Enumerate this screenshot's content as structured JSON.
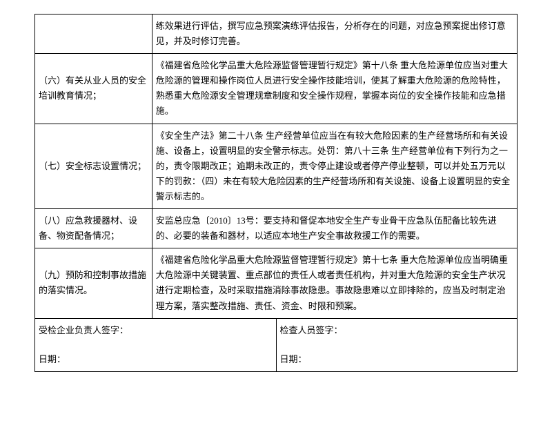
{
  "table": {
    "rows": [
      {
        "label": "",
        "content": "练效果进行评估，撰写应急预案演练评估报告，分析存在的问题，对应急预案提出修订意见，并及时修订完善。"
      },
      {
        "label": "（六）有关从业人员的安全培训教育情况；",
        "content": "《福建省危险化学品重大危险源监督管理暂行规定》第十八条 重大危险源单位应当对重大危险源的管理和操作岗位人员进行安全操作技能培训，使其了解重大危险源的危险特性，熟悉重大危险源安全管理规章制度和安全操作规程，掌握本岗位的安全操作技能和应急措施。"
      },
      {
        "label": "（七）安全标志设置情况；",
        "content": "《安全生产法》第二十八条 生产经营单位应当在有较大危险因素的生产经营场所和有关设施、设备上，设置明显的安全警示标志。处罚：第八十三条 生产经营单位有下列行为之一的，责令限期改正；逾期未改正的，责令停止建设或者停产停业整顿，可以并处五万元以下的罚款：（四）未在有较大危险因素的生产经营场所和有关设施、设备上设置明显的安全警示标志的。"
      },
      {
        "label": "（八）应急救援器材、设备、物资配备情况；",
        "content": "安监总应急〔2010〕13号：要支持和督促本地安全生产专业骨干应急队伍配备比较先进的、必要的装备和器材，以适应本地生产安全事故救援工作的需要。"
      },
      {
        "label": "（九）预防和控制事故措施的落实情况。",
        "content": "《福建省危险化学品重大危险源监督管理暂行规定》第十七条 重大危险源单位应当明确重大危险源中关键装置、重点部位的责任人或者责任机构，并对重大危险源的安全生产状况进行定期检查，及时采取措施消除事故隐患。事故隐患难以立即排除的，应当及时制定治理方案，落实整改措施、责任、资金、时限和预案。"
      }
    ],
    "signature": {
      "left_title": "受检企业负责人签字：",
      "right_title": "检查人员签字：",
      "date_label": "日期："
    }
  },
  "colors": {
    "border": "#000000",
    "background": "#ffffff",
    "text": "#000000"
  },
  "typography": {
    "font_family": "SimSun",
    "font_size": 13,
    "line_height": 1.7
  }
}
